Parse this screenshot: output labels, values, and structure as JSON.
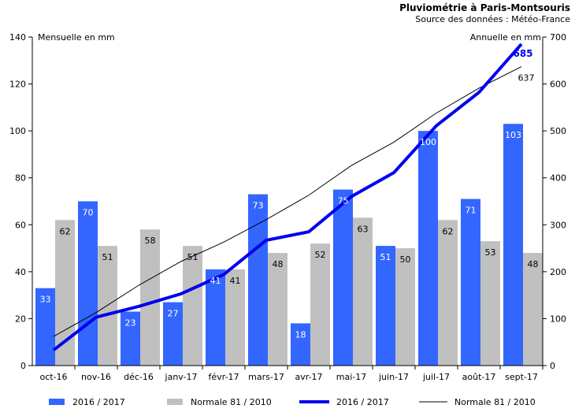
{
  "chart_data": {
    "type": "bar",
    "title": "Pluviométrie à Paris-Montsouris",
    "subtitle": "Source des données : Météo-France",
    "ylabel_left": "Mensuelle en mm",
    "ylabel_right": "Annuelle en mm",
    "categories": [
      "oct-16",
      "nov-16",
      "déc-16",
      "janv-17",
      "févr-17",
      "mars-17",
      "avr-17",
      "mai-17",
      "juin-17",
      "juil-17",
      "août-17",
      "sept-17"
    ],
    "ylim_left": [
      0,
      140
    ],
    "yticks_left": [
      "0",
      "20",
      "40",
      "60",
      "80",
      "100",
      "120",
      "140"
    ],
    "ylim_right": [
      0,
      700
    ],
    "yticks_right": [
      "0",
      "100",
      "200",
      "300",
      "400",
      "500",
      "600",
      "700"
    ],
    "series": [
      {
        "name": "2016 / 2017",
        "type": "bar",
        "axis": "left",
        "color": "#3366ff",
        "values": [
          33,
          70,
          23,
          27,
          41,
          73,
          18,
          75,
          51,
          100,
          71,
          103
        ],
        "labels": [
          "33",
          "70",
          "23",
          "27",
          "41",
          "73",
          "18",
          "75",
          "51",
          "100",
          "71",
          "103"
        ]
      },
      {
        "name": "Normale 81 / 2010",
        "type": "bar",
        "axis": "left",
        "color": "#c0c0c0",
        "values": [
          62,
          51,
          58,
          51,
          41,
          48,
          52,
          63,
          50,
          62,
          53,
          48
        ],
        "labels": [
          "62",
          "51",
          "58",
          "51",
          "41",
          "48",
          "52",
          "63",
          "50",
          "62",
          "53",
          "48"
        ]
      },
      {
        "name": "2016 / 2017",
        "type": "line",
        "axis": "right",
        "color": "#0000ee",
        "values": [
          33,
          103,
          126,
          153,
          194,
          267,
          285,
          360,
          411,
          511,
          582,
          685
        ],
        "end_label": "685"
      },
      {
        "name": "Normale 81 / 2010",
        "type": "line",
        "axis": "right",
        "color": "#000000",
        "values": [
          62,
          113,
          171,
          222,
          263,
          311,
          363,
          426,
          476,
          538,
          591,
          637
        ],
        "end_label": "637"
      }
    ],
    "legend": [
      "2016 / 2017",
      "Normale 81 / 2010",
      "2016 / 2017",
      "Normale 81 / 2010"
    ],
    "legend_position": "bottom",
    "grid": false
  }
}
